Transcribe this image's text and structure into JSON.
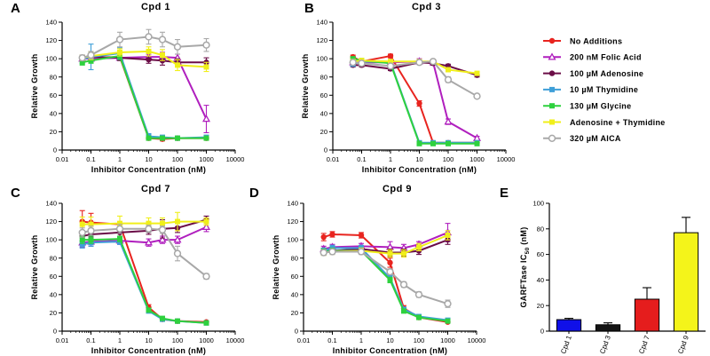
{
  "legend": [
    {
      "name": "No Additions",
      "color": "#e8241f",
      "marker": "dot"
    },
    {
      "name": "200 nM Folic Acid",
      "color": "#b01fbe",
      "marker": "tri"
    },
    {
      "name": "100 µM Adenosine",
      "color": "#6b0d47",
      "marker": "dot"
    },
    {
      "name": "10 µM Thymidine",
      "color": "#3f9fd8",
      "marker": "sq"
    },
    {
      "name": "130 µM Glycine",
      "color": "#2ed13e",
      "marker": "sq"
    },
    {
      "name": "Adenosine + Thymidine",
      "color": "#f0ef1a",
      "marker": "sq"
    },
    {
      "name": "320 µM AICA",
      "color": "#a8a8a8",
      "marker": "ring"
    }
  ],
  "chart_data": [
    {
      "label": "A",
      "type": "line",
      "title": "Cpd 1",
      "xlabel": "Inhibitor Concentration (nM)",
      "ylabel": "Relative Growth",
      "xscale": "log",
      "xlim": [
        0.01,
        10000
      ],
      "ylim": [
        0,
        140
      ],
      "xticks": [
        "0.01",
        "0.1",
        "1",
        "10",
        "100",
        "1000",
        "10000"
      ],
      "yticks": [
        "0",
        "20",
        "40",
        "60",
        "80",
        "100",
        "120",
        "140"
      ],
      "x": [
        0.05,
        0.1,
        1,
        10,
        30,
        100,
        1000
      ],
      "series": [
        {
          "name": "No Additions",
          "values": [
            100,
            101,
            102,
            13,
            12,
            13,
            13
          ],
          "err": [
            3,
            3,
            3,
            2,
            2,
            2,
            2
          ]
        },
        {
          "name": "200 nM Folic Acid",
          "values": [
            100,
            100,
            101,
            102,
            102,
            101,
            34
          ],
          "err": [
            2,
            3,
            3,
            3,
            5,
            4,
            15
          ]
        },
        {
          "name": "100 µM Adenosine",
          "values": [
            101,
            102,
            101,
            99,
            98,
            96,
            96
          ],
          "err": [
            3,
            4,
            3,
            4,
            5,
            4,
            5
          ]
        },
        {
          "name": "10 µM Thymidine",
          "values": [
            99,
            102,
            106,
            15,
            14,
            13,
            14
          ],
          "err": [
            4,
            14,
            6,
            3,
            2,
            2,
            2
          ]
        },
        {
          "name": "130 µM Glycine",
          "values": [
            96,
            98,
            103,
            13,
            13,
            13,
            13
          ],
          "err": [
            3,
            3,
            4,
            2,
            2,
            2,
            2
          ]
        },
        {
          "name": "Adenosine + Thymidine",
          "values": [
            101,
            103,
            107,
            108,
            104,
            93,
            91
          ],
          "err": [
            3,
            4,
            4,
            5,
            6,
            6,
            5
          ]
        },
        {
          "name": "320 µM AICA",
          "values": [
            101,
            104,
            121,
            124,
            121,
            113,
            115
          ],
          "err": [
            3,
            4,
            8,
            8,
            8,
            8,
            7
          ]
        }
      ]
    },
    {
      "label": "B",
      "type": "line",
      "title": "Cpd 3",
      "xlabel": "Inhibitor Concentration (nM)",
      "ylabel": "Relative Growth",
      "xscale": "log",
      "xlim": [
        0.01,
        10000
      ],
      "ylim": [
        0,
        140
      ],
      "xticks": [
        "0.01",
        "0.1",
        "1",
        "10",
        "100",
        "1000",
        "10000"
      ],
      "yticks": [
        "0",
        "20",
        "40",
        "60",
        "80",
        "100",
        "120",
        "140"
      ],
      "x": [
        0.05,
        0.1,
        1,
        10,
        30,
        100,
        1000
      ],
      "series": [
        {
          "name": "No Additions",
          "values": [
            102,
            97,
            103,
            51,
            8,
            8,
            8
          ],
          "err": [
            2,
            2,
            2,
            3,
            1,
            1,
            1
          ]
        },
        {
          "name": "200 nM Folic Acid",
          "values": [
            96,
            96,
            96,
            97,
            96,
            31,
            13
          ],
          "err": [
            2,
            2,
            2,
            3,
            3,
            3,
            2
          ]
        },
        {
          "name": "100 µM Adenosine",
          "values": [
            93,
            93,
            89,
            96,
            95,
            92,
            82
          ],
          "err": [
            2,
            2,
            2,
            2,
            2,
            2,
            2
          ]
        },
        {
          "name": "10 µM Thymidine",
          "values": [
            94,
            97,
            96,
            8,
            8,
            8,
            8
          ],
          "err": [
            2,
            2,
            2,
            1,
            1,
            1,
            1
          ]
        },
        {
          "name": "130 µM Glycine",
          "values": [
            100,
            98,
            95,
            7,
            7,
            7,
            7
          ],
          "err": [
            2,
            2,
            2,
            1,
            1,
            1,
            1
          ]
        },
        {
          "name": "Adenosine + Thymidine",
          "values": [
            97,
            98,
            97,
            97,
            97,
            88,
            84
          ],
          "err": [
            2,
            2,
            2,
            2,
            2,
            2,
            2
          ]
        },
        {
          "name": "320 µM AICA",
          "values": [
            96,
            95,
            92,
            96,
            97,
            77,
            59
          ],
          "err": [
            2,
            2,
            2,
            2,
            2,
            3,
            2
          ]
        }
      ]
    },
    {
      "label": "C",
      "type": "line",
      "title": "Cpd 7",
      "xlabel": "Inhibitor Concentration (nM)",
      "ylabel": "Relative Growth",
      "xscale": "log",
      "xlim": [
        0.01,
        10000
      ],
      "ylim": [
        0,
        140
      ],
      "xticks": [
        "0.01",
        "0.1",
        "1",
        "10",
        "100",
        "1000",
        "10000"
      ],
      "yticks": [
        "0",
        "20",
        "40",
        "60",
        "80",
        "100",
        "120",
        "140"
      ],
      "x": [
        0.05,
        0.1,
        1,
        10,
        30,
        100,
        1000
      ],
      "series": [
        {
          "name": "No Additions",
          "values": [
            120,
            119,
            117,
            26,
            13,
            11,
            10
          ],
          "err": [
            12,
            10,
            3,
            3,
            2,
            1,
            1
          ]
        },
        {
          "name": "200 nM Folic Acid",
          "values": [
            97,
            98,
            99,
            97,
            100,
            100,
            114
          ],
          "err": [
            5,
            5,
            4,
            4,
            4,
            4,
            5
          ]
        },
        {
          "name": "100 µM Adenosine",
          "values": [
            104,
            106,
            108,
            110,
            112,
            113,
            122
          ],
          "err": [
            5,
            5,
            4,
            4,
            10,
            5,
            4
          ]
        },
        {
          "name": "10 µM Thymidine",
          "values": [
            95,
            97,
            98,
            22,
            13,
            11,
            9
          ],
          "err": [
            4,
            4,
            3,
            2,
            2,
            1,
            1
          ]
        },
        {
          "name": "130 µM Glycine",
          "values": [
            100,
            100,
            101,
            23,
            14,
            11,
            9
          ],
          "err": [
            4,
            4,
            3,
            2,
            2,
            1,
            1
          ]
        },
        {
          "name": "Adenosine + Thymidine",
          "values": [
            117,
            117,
            118,
            118,
            118,
            120,
            120
          ],
          "err": [
            8,
            8,
            8,
            6,
            6,
            10,
            4
          ]
        },
        {
          "name": "320 µM AICA",
          "values": [
            108,
            110,
            112,
            112,
            111,
            85,
            60
          ],
          "err": [
            5,
            5,
            5,
            4,
            4,
            8,
            3
          ]
        }
      ]
    },
    {
      "label": "D",
      "type": "line",
      "title": "Cpd 9",
      "xlabel": "Inhibitor Concentration (nM)",
      "ylabel": "Relative Growth",
      "xscale": "log",
      "xlim": [
        0.01,
        10000
      ],
      "ylim": [
        0,
        140
      ],
      "xticks": [
        "0.01",
        "0.1",
        "1",
        "10",
        "100",
        "1000",
        "10000"
      ],
      "yticks": [
        "0",
        "20",
        "40",
        "60",
        "80",
        "100",
        "120",
        "140"
      ],
      "x": [
        0.05,
        0.1,
        1,
        10,
        30,
        100,
        1000
      ],
      "series": [
        {
          "name": "No Additions",
          "values": [
            103,
            106,
            105,
            75,
            25,
            15,
            10
          ],
          "err": [
            4,
            3,
            3,
            5,
            3,
            2,
            1
          ]
        },
        {
          "name": "200 nM Folic Acid",
          "values": [
            90,
            92,
            93,
            92,
            91,
            95,
            108
          ],
          "err": [
            3,
            3,
            3,
            6,
            4,
            3,
            10
          ]
        },
        {
          "name": "100 µM Adenosine",
          "values": [
            88,
            88,
            90,
            86,
            86,
            88,
            100
          ],
          "err": [
            3,
            3,
            3,
            4,
            4,
            4,
            5
          ]
        },
        {
          "name": "10 µM Thymidine",
          "values": [
            88,
            91,
            91,
            58,
            24,
            16,
            12
          ],
          "err": [
            3,
            3,
            3,
            3,
            2,
            2,
            1
          ]
        },
        {
          "name": "130 µM Glycine",
          "values": [
            87,
            88,
            88,
            56,
            22,
            15,
            11
          ],
          "err": [
            3,
            3,
            3,
            3,
            2,
            2,
            1
          ]
        },
        {
          "name": "Adenosine + Thymidine",
          "values": [
            86,
            87,
            88,
            85,
            85,
            92,
            105
          ],
          "err": [
            3,
            3,
            3,
            4,
            4,
            4,
            5
          ]
        },
        {
          "name": "320 µM AICA",
          "values": [
            86,
            87,
            87,
            65,
            51,
            40,
            30
          ],
          "err": [
            3,
            3,
            3,
            3,
            3,
            3,
            4
          ]
        }
      ]
    },
    {
      "label": "E",
      "type": "bar",
      "title": "",
      "ylabel": "GARFTase IC50 (nM)",
      "ylabel_main": "GARFTase IC",
      "ylabel_sub": "50",
      "ylabel_tail": " (nM)",
      "ylim": [
        0,
        100
      ],
      "yticks": [
        "0",
        "20",
        "40",
        "60",
        "80",
        "100"
      ],
      "categories": [
        "Cpd 1",
        "Cpd 3",
        "Cpd 7",
        "Cpd 9"
      ],
      "values": [
        9,
        5,
        25,
        77
      ],
      "err": [
        1,
        1.5,
        9,
        12
      ],
      "colors": [
        "#1010e8",
        "#141414",
        "#e51d1d",
        "#f4f41a"
      ]
    }
  ]
}
